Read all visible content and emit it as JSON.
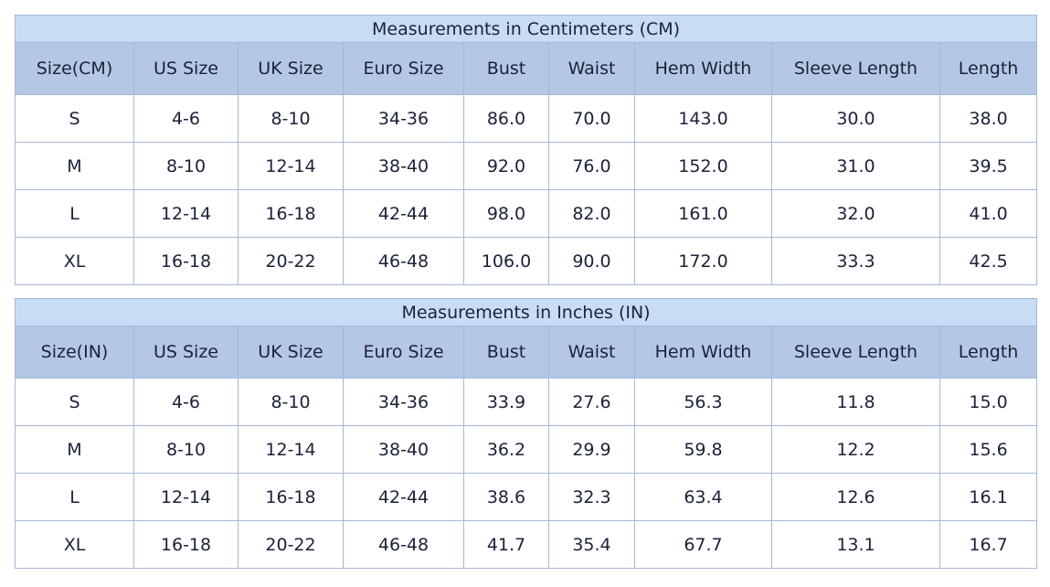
{
  "tables": [
    {
      "title": "Measurements in Centimeters (CM)",
      "headers": [
        "Size(CM)",
        "US Size",
        "UK Size",
        "Euro Size",
        "Bust",
        "Waist",
        "Hem Width",
        "Sleeve Length",
        "Length"
      ],
      "rows": [
        [
          "S",
          "4-6",
          "8-10",
          "34-36",
          "86.0",
          "70.0",
          "143.0",
          "30.0",
          "38.0"
        ],
        [
          "M",
          "8-10",
          "12-14",
          "38-40",
          "92.0",
          "76.0",
          "152.0",
          "31.0",
          "39.5"
        ],
        [
          "L",
          "12-14",
          "16-18",
          "42-44",
          "98.0",
          "82.0",
          "161.0",
          "32.0",
          "41.0"
        ],
        [
          "XL",
          "16-18",
          "20-22",
          "46-48",
          "106.0",
          "90.0",
          "172.0",
          "33.3",
          "42.5"
        ]
      ]
    },
    {
      "title": "Measurements in Inches (IN)",
      "headers": [
        "Size(IN)",
        "US Size",
        "UK Size",
        "Euro Size",
        "Bust",
        "Waist",
        "Hem Width",
        "Sleeve Length",
        "Length"
      ],
      "rows": [
        [
          "S",
          "4-6",
          "8-10",
          "34-36",
          "33.9",
          "27.6",
          "56.3",
          "11.8",
          "15.0"
        ],
        [
          "M",
          "8-10",
          "12-14",
          "38-40",
          "36.2",
          "29.9",
          "59.8",
          "12.2",
          "15.6"
        ],
        [
          "L",
          "12-14",
          "16-18",
          "42-44",
          "38.6",
          "32.3",
          "63.4",
          "12.6",
          "16.1"
        ],
        [
          "XL",
          "16-18",
          "20-22",
          "46-48",
          "41.7",
          "35.4",
          "67.7",
          "13.1",
          "16.7"
        ]
      ]
    }
  ],
  "colors": {
    "title_bg": "#c9dcf6",
    "header_bg": "#b4c8e6",
    "border": "#a5b7d6",
    "text": "#1b2238"
  }
}
